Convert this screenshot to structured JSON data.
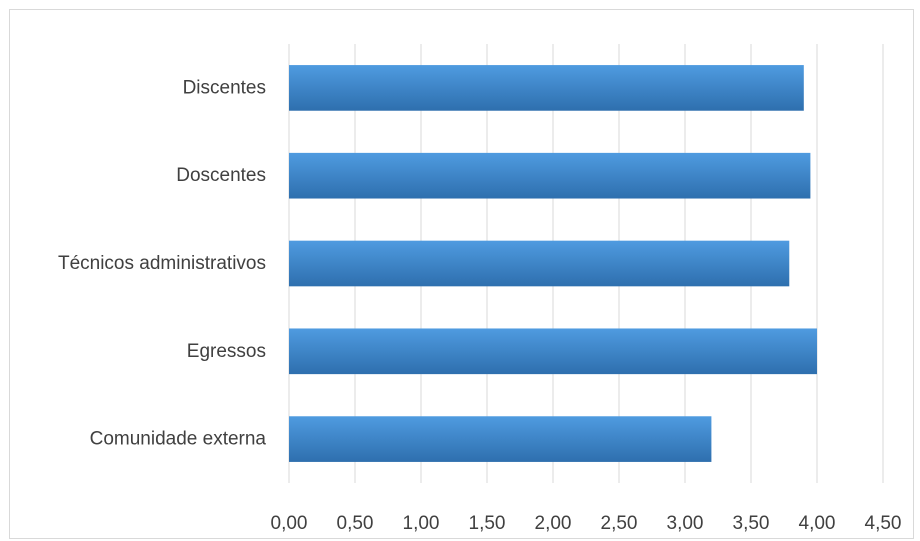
{
  "chart_data": {
    "type": "bar",
    "orientation": "horizontal",
    "title": "",
    "xlabel": "",
    "ylabel": "",
    "categories": [
      "Discentes",
      "Doscentes",
      "Técnicos administrativos",
      "Egressos",
      "Comunidade externa"
    ],
    "values": [
      3.9,
      3.95,
      3.79,
      4.0,
      3.2
    ],
    "xlim": [
      0,
      4.5
    ],
    "ticks": [
      "0,00",
      "0,50",
      "1,00",
      "1,50",
      "2,00",
      "2,50",
      "3,00",
      "3,50",
      "4,00",
      "4,50"
    ],
    "tick_values": [
      0,
      0.5,
      1,
      1.5,
      2,
      2.5,
      3,
      3.5,
      4,
      4.5
    ],
    "grid": true,
    "legend": "none",
    "colors": {
      "bar_top": "#4f9be0",
      "bar_bottom": "#2e6fae",
      "grid": "#d9d9d9",
      "text": "#404040"
    }
  }
}
